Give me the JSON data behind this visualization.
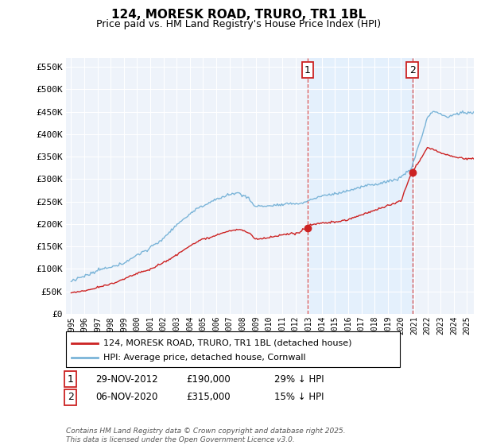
{
  "title": "124, MORESK ROAD, TRURO, TR1 1BL",
  "subtitle": "Price paid vs. HM Land Registry's House Price Index (HPI)",
  "ytick_values": [
    0,
    50000,
    100000,
    150000,
    200000,
    250000,
    300000,
    350000,
    400000,
    450000,
    500000,
    550000
  ],
  "ylim": [
    0,
    570000
  ],
  "hpi_color": "#7ab4d8",
  "price_color": "#cc2222",
  "shade_color": "#ddeeff",
  "marker1_date": 2012.92,
  "marker1_price": 190000,
  "marker2_date": 2020.85,
  "marker2_price": 315000,
  "legend_entries": [
    "124, MORESK ROAD, TRURO, TR1 1BL (detached house)",
    "HPI: Average price, detached house, Cornwall"
  ],
  "table_rows": [
    [
      "1",
      "29-NOV-2012",
      "£190,000",
      "29% ↓ HPI"
    ],
    [
      "2",
      "06-NOV-2020",
      "£315,000",
      "15% ↓ HPI"
    ]
  ],
  "footnote": "Contains HM Land Registry data © Crown copyright and database right 2025.\nThis data is licensed under the Open Government Licence v3.0.",
  "background_color": "#ffffff",
  "plot_bg_color": "#eef3fa"
}
